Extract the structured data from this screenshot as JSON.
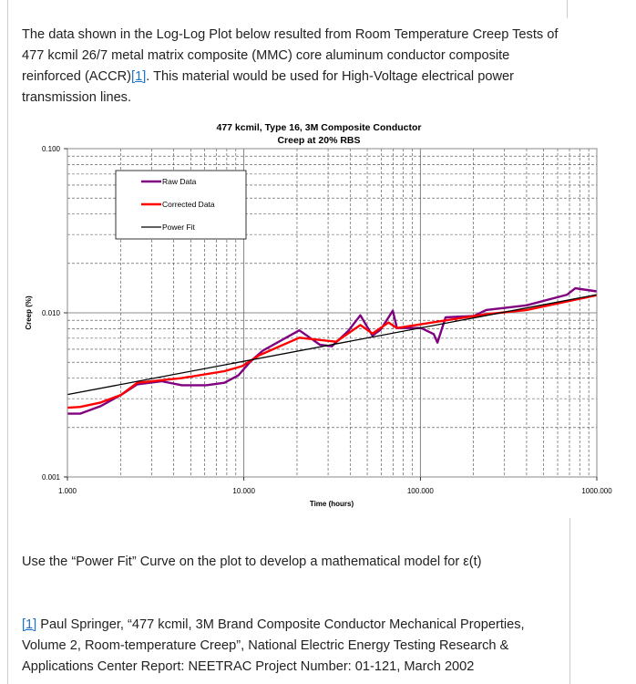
{
  "intro": {
    "text_before": "The data shown in the Log-Log Plot below resulted from Room Temperature Creep Tests of 477 kcmil 26/7 metal matrix composite (MMC) core aluminum conductor composite reinforced (ACCR)",
    "ref_link": "[1]",
    "text_after": ". This material would be used for High-Voltage electrical power transmission lines."
  },
  "task": "Use the “Power Fit” Curve on the plot to develop a mathematical model for ε(t)",
  "reference": {
    "link": "[1]",
    "text": " Paul Springer, “477 kcmil, 3M Brand Composite Conductor Mechanical Properties, Volume 2, Room-temperature Creep”, National Electric Energy Testing Research & Applications Center Report: NEETRAC Project Number: 01-121, March 2002"
  },
  "chart_data": {
    "type": "line",
    "title": "477 kcmil, Type 16, 3M Composite Conductor",
    "subtitle": "Creep at 20% RBS",
    "xlabel": "Time (hours)",
    "ylabel": "Creep (%)",
    "xscale": "log",
    "yscale": "log",
    "xlim": [
      1,
      1000
    ],
    "ylim": [
      0.001,
      0.1
    ],
    "xticks": [
      "1.000",
      "10.000",
      "100.000",
      "1000.000"
    ],
    "yticks": [
      "0.001",
      "0.010",
      "0.100"
    ],
    "grid": "major solid, minor dashed",
    "legend_position": "top-left",
    "series": [
      {
        "name": "Raw Data",
        "color": "#800080",
        "points": [
          [
            1,
            0.00243
          ],
          [
            1.18,
            0.00243
          ],
          [
            1.54,
            0.0027
          ],
          [
            2.01,
            0.00316
          ],
          [
            2.49,
            0.00367
          ],
          [
            3.41,
            0.00383
          ],
          [
            4.45,
            0.00362
          ],
          [
            6.11,
            0.00362
          ],
          [
            7.76,
            0.00375
          ],
          [
            9.33,
            0.00417
          ],
          [
            10.9,
            0.00506
          ],
          [
            12.8,
            0.00588
          ],
          [
            20.6,
            0.00782
          ],
          [
            26.9,
            0.0064
          ],
          [
            31.5,
            0.00625
          ],
          [
            39,
            0.00774
          ],
          [
            45.7,
            0.00966
          ],
          [
            53.5,
            0.00726
          ],
          [
            59.6,
            0.0079
          ],
          [
            69.8,
            0.0103
          ],
          [
            73.6,
            0.00808
          ],
          [
            101,
            0.00808
          ],
          [
            119,
            0.00742
          ],
          [
            125,
            0.00659
          ],
          [
            139,
            0.00938
          ],
          [
            201,
            0.00958
          ],
          [
            236,
            0.0104
          ],
          [
            400,
            0.0111
          ],
          [
            679,
            0.0129
          ],
          [
            755,
            0.0141
          ],
          [
            1000,
            0.0135
          ]
        ]
      },
      {
        "name": "Corrected Data",
        "color": "#ff0000",
        "points": [
          [
            1,
            0.00264
          ],
          [
            1.18,
            0.00267
          ],
          [
            1.54,
            0.00284
          ],
          [
            2.01,
            0.00316
          ],
          [
            2.49,
            0.00375
          ],
          [
            4.45,
            0.004
          ],
          [
            7.76,
            0.00441
          ],
          [
            9.8,
            0.00474
          ],
          [
            12.2,
            0.00551
          ],
          [
            20.6,
            0.00705
          ],
          [
            33.3,
            0.00667
          ],
          [
            45.7,
            0.00843
          ],
          [
            53.5,
            0.00748
          ],
          [
            66,
            0.00873
          ],
          [
            73.6,
            0.00808
          ],
          [
            139,
            0.00899
          ],
          [
            236,
            0.0098
          ],
          [
            400,
            0.0104
          ],
          [
            1000,
            0.0128
          ]
        ]
      },
      {
        "name": "Power Fit",
        "color": "#000000",
        "points": [
          [
            1,
            0.00318
          ],
          [
            1000,
            0.0129
          ]
        ]
      }
    ]
  }
}
